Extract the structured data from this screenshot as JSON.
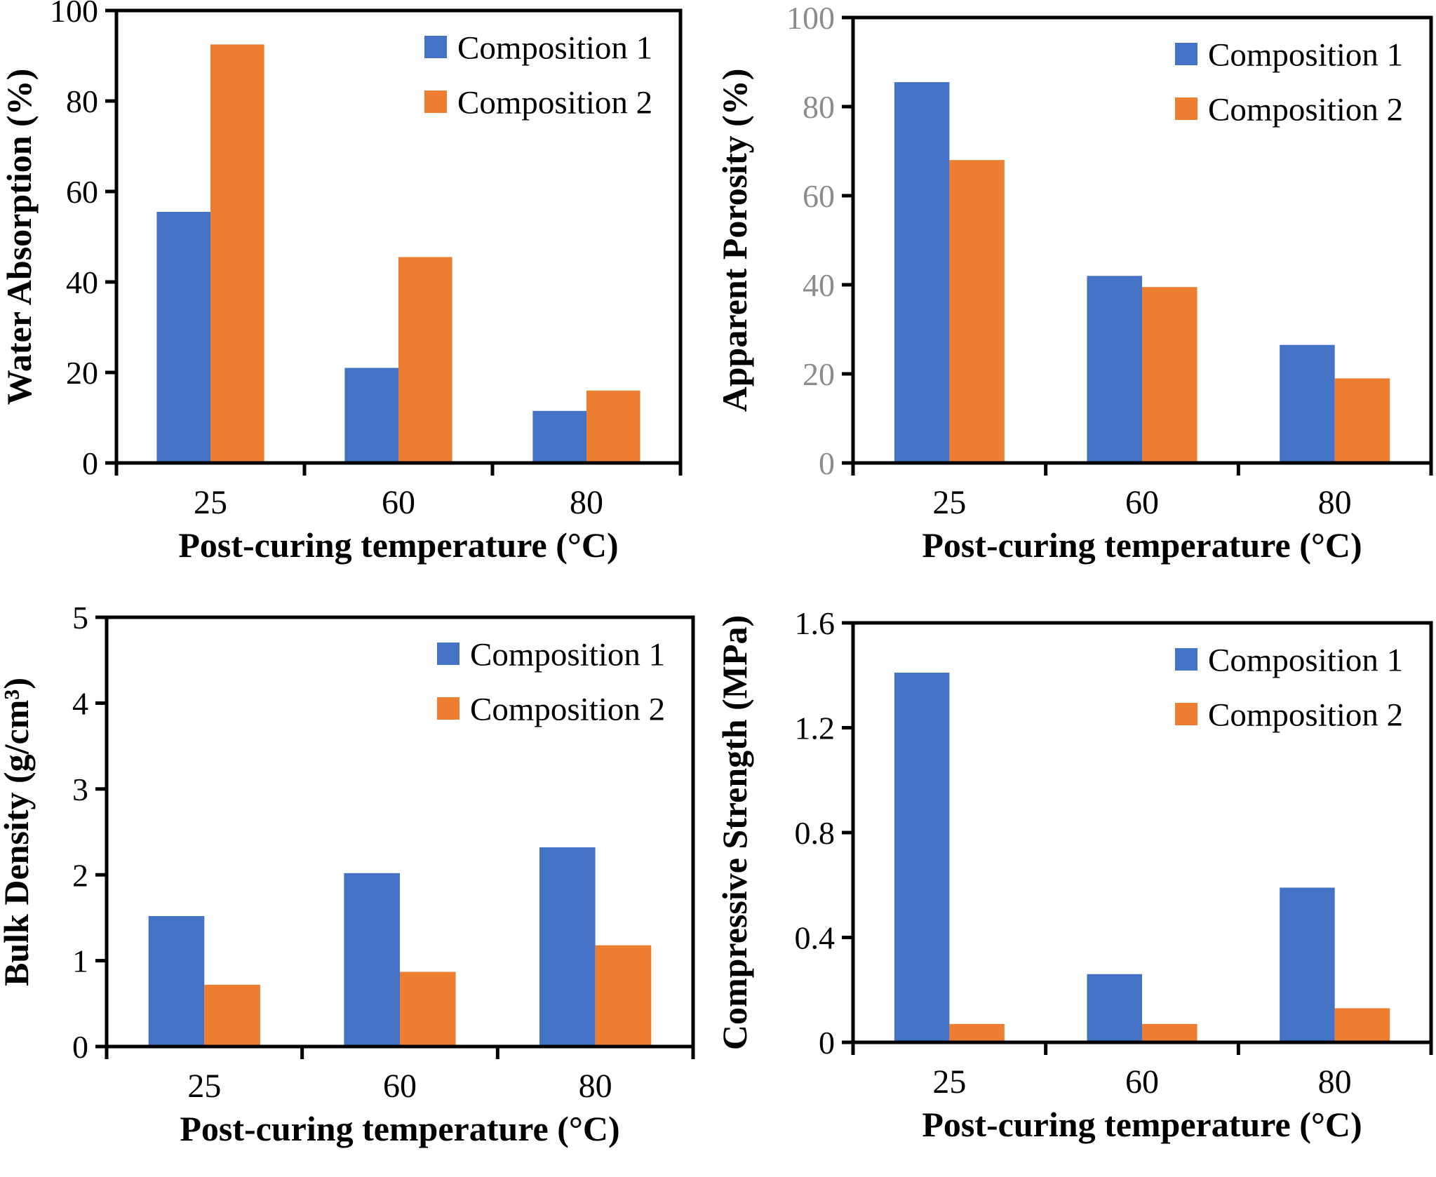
{
  "figure": {
    "background": "#ffffff",
    "axis_color": "#000000",
    "series_colors": {
      "composition_1": "#4472C4",
      "composition_2": "#ED7D31"
    }
  },
  "legend": {
    "items": [
      {
        "label": "Composition 1",
        "color": "#4472C4"
      },
      {
        "label": "Composition 2",
        "color": "#ED7D31"
      }
    ]
  },
  "chart_data": [
    {
      "id": "water-absorption",
      "type": "bar",
      "title": "",
      "xlabel": "Post-curing temperature (°C)",
      "ylabel": "Water Absorption (%)",
      "categories": [
        "25",
        "60",
        "80"
      ],
      "series": [
        {
          "name": "Composition 1",
          "color": "#4472C4",
          "values": [
            55.5,
            21,
            11.5
          ]
        },
        {
          "name": "Composition 2",
          "color": "#ED7D31",
          "values": [
            92.5,
            45.5,
            16
          ]
        }
      ],
      "ylim": [
        0,
        100
      ],
      "yticks": [
        0,
        20,
        40,
        60,
        80,
        100
      ],
      "ytick_labels": [
        "0",
        "20",
        "40",
        "60",
        "80",
        "100"
      ],
      "ytick_label_color": "#000000",
      "grid": false,
      "legend_position": "top-right"
    },
    {
      "id": "apparent-porosity",
      "type": "bar",
      "title": "",
      "xlabel": "Post-curing temperature (°C)",
      "ylabel": "Apparent Porosity (%)",
      "categories": [
        "25",
        "60",
        "80"
      ],
      "series": [
        {
          "name": "Composition 1",
          "color": "#4472C4",
          "values": [
            85.5,
            42,
            26.5
          ]
        },
        {
          "name": "Composition 2",
          "color": "#ED7D31",
          "values": [
            68,
            39.5,
            19
          ]
        }
      ],
      "ylim": [
        0,
        100
      ],
      "yticks": [
        0,
        20,
        40,
        60,
        80,
        100
      ],
      "ytick_labels": [
        "0",
        "20",
        "40",
        "60",
        "80",
        "100"
      ],
      "ytick_label_color": "#8C8C8C",
      "grid": false,
      "legend_position": "top-right"
    },
    {
      "id": "bulk-density",
      "type": "bar",
      "title": "",
      "xlabel": "Post-curing temperature (°C)",
      "ylabel": "Bulk Density (g/cm³)",
      "categories": [
        "25",
        "60",
        "80"
      ],
      "series": [
        {
          "name": "Composition 1",
          "color": "#4472C4",
          "values": [
            1.52,
            2.02,
            2.32
          ]
        },
        {
          "name": "Composition 2",
          "color": "#ED7D31",
          "values": [
            0.72,
            0.87,
            1.18
          ]
        }
      ],
      "ylim": [
        0,
        5
      ],
      "yticks": [
        0,
        1,
        2,
        3,
        4,
        5
      ],
      "ytick_labels": [
        "0",
        "1",
        "2",
        "3",
        "4",
        "5"
      ],
      "ytick_label_color": "#000000",
      "grid": false,
      "legend_position": "top-right"
    },
    {
      "id": "compressive-strength",
      "type": "bar",
      "title": "",
      "xlabel": "Post-curing temperature (°C)",
      "ylabel": "Compressive Strength (MPa)",
      "categories": [
        "25",
        "60",
        "80"
      ],
      "series": [
        {
          "name": "Composition 1",
          "color": "#4472C4",
          "values": [
            1.41,
            0.26,
            0.59
          ]
        },
        {
          "name": "Composition 2",
          "color": "#ED7D31",
          "values": [
            0.07,
            0.07,
            0.13
          ]
        }
      ],
      "ylim": [
        0,
        1.6
      ],
      "yticks": [
        0,
        0.4,
        0.8,
        1.2,
        1.6
      ],
      "ytick_labels": [
        "0",
        "0.4",
        "0.8",
        "1.2",
        "1.6"
      ],
      "ytick_label_color": "#000000",
      "grid": false,
      "legend_position": "top-right"
    }
  ]
}
